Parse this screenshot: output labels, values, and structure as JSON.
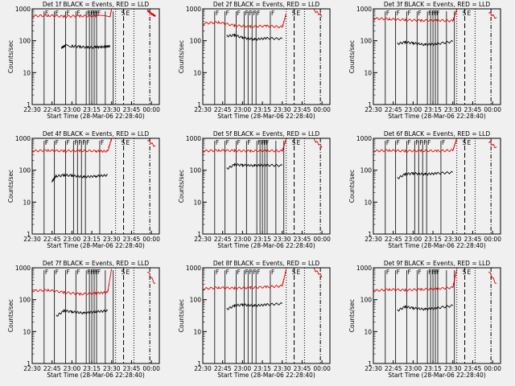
{
  "chart_data": [
    {
      "type": "line",
      "title": "Det 1f BLACK = Events, RED = LLD",
      "xlabel": "Start Time (28-Mar-06 22:28:40)",
      "ylabel": "Counts/sec",
      "ylim": [
        1,
        1000
      ],
      "yscale": "log",
      "yticks": [
        "1",
        "10",
        "100",
        "1000"
      ],
      "xticks": [
        "22:30",
        "22:45",
        "23:00",
        "23:15",
        "23:30",
        "23:45",
        "00:00"
      ],
      "series": [
        {
          "color": "#000000",
          "values": [
            [
              22.87,
              60
            ],
            [
              22.92,
              72
            ],
            [
              23.0,
              68
            ],
            [
              23.1,
              65
            ],
            [
              23.2,
              62
            ],
            [
              23.3,
              63
            ],
            [
              23.42,
              65
            ],
            [
              23.48,
              68
            ]
          ]
        },
        {
          "color": "#e00000",
          "values": [
            [
              22.5,
              600
            ],
            [
              22.7,
              620
            ],
            [
              22.9,
              580
            ],
            [
              23.1,
              600
            ],
            [
              23.3,
              590
            ],
            [
              23.48,
              560
            ],
            [
              23.5,
              990
            ]
          ]
        },
        {
          "color": "#e00000",
          "values": [
            [
              23.95,
              900
            ],
            [
              24.0,
              700
            ],
            [
              24.05,
              600
            ]
          ]
        }
      ],
      "labels": [
        "F",
        "F",
        "F",
        "F",
        "F",
        "F",
        "F",
        "F",
        "F",
        "S",
        "E"
      ]
    },
    {
      "type": "line",
      "title": "Det 2f BLACK = Events, RED = LLD",
      "xlabel": "Start Time (28-Mar-06 22:28:40)",
      "ylabel": "Counts/sec",
      "ylim": [
        1,
        1000
      ],
      "yscale": "log",
      "yticks": [
        "1",
        "10",
        "100",
        "1000"
      ],
      "xticks": [
        "22:30",
        "22:45",
        "23:00",
        "23:15",
        "23:30",
        "23:45",
        "00:00"
      ],
      "series": [
        {
          "color": "#000000",
          "values": [
            [
              22.8,
              140
            ],
            [
              22.9,
              150
            ],
            [
              23.0,
              125
            ],
            [
              23.15,
              110
            ],
            [
              23.3,
              120
            ],
            [
              23.5,
              115
            ]
          ]
        },
        {
          "color": "#e00000",
          "values": [
            [
              22.5,
              350
            ],
            [
              22.7,
              380
            ],
            [
              22.9,
              300
            ],
            [
              23.1,
              280
            ],
            [
              23.3,
              290
            ],
            [
              23.5,
              270
            ],
            [
              23.55,
              700
            ]
          ]
        },
        {
          "color": "#e00000",
          "values": [
            [
              23.9,
              900
            ],
            [
              24.0,
              600
            ]
          ]
        }
      ],
      "labels": [
        "F",
        "F",
        "F",
        "F",
        "F",
        "F",
        "F",
        "F",
        "S",
        "E"
      ]
    },
    {
      "type": "line",
      "title": "Det 3f BLACK = Events, RED = LLD",
      "xlabel": "Start Time (28-Mar-06 22:28:40)",
      "ylabel": "Counts/sec",
      "ylim": [
        1,
        1000
      ],
      "yscale": "log",
      "yticks": [
        "1",
        "10",
        "100",
        "1000"
      ],
      "xticks": [
        "22:30",
        "22:45",
        "23:00",
        "23:15",
        "23:30",
        "23:45",
        "00:00"
      ],
      "series": [
        {
          "color": "#000000",
          "values": [
            [
              22.8,
              80
            ],
            [
              22.9,
              90
            ],
            [
              23.0,
              85
            ],
            [
              23.15,
              75
            ],
            [
              23.3,
              80
            ],
            [
              23.5,
              95
            ]
          ]
        },
        {
          "color": "#e00000",
          "values": [
            [
              22.5,
              500
            ],
            [
              22.7,
              480
            ],
            [
              22.9,
              450
            ],
            [
              23.1,
              430
            ],
            [
              23.3,
              440
            ],
            [
              23.5,
              420
            ],
            [
              23.55,
              950
            ]
          ]
        },
        {
          "color": "#e00000",
          "values": [
            [
              23.95,
              800
            ],
            [
              24.05,
              500
            ]
          ]
        }
      ],
      "labels": [
        "F",
        "F",
        "F",
        "F",
        "F",
        "F",
        "F",
        "F",
        "S",
        "E"
      ]
    },
    {
      "type": "line",
      "title": "Det 4f BLACK = Events, RED = LLD",
      "xlabel": "Start Time (28-Mar-06 22:28:40)",
      "ylabel": "Counts/sec",
      "ylim": [
        1,
        1000
      ],
      "yscale": "log",
      "yticks": [
        "1",
        "10",
        "100",
        "1000"
      ],
      "xticks": [
        "22:30",
        "22:45",
        "23:00",
        "23:15",
        "23:30",
        "23:45",
        "00:00"
      ],
      "series": [
        {
          "color": "#000000",
          "values": [
            [
              22.75,
              45
            ],
            [
              22.8,
              65
            ],
            [
              22.9,
              70
            ],
            [
              23.0,
              68
            ],
            [
              23.15,
              62
            ],
            [
              23.3,
              65
            ],
            [
              23.45,
              70
            ]
          ]
        },
        {
          "color": "#e00000",
          "values": [
            [
              22.5,
              400
            ],
            [
              22.7,
              420
            ],
            [
              22.9,
              400
            ],
            [
              23.1,
              410
            ],
            [
              23.3,
              400
            ],
            [
              23.45,
              390
            ],
            [
              23.5,
              980
            ]
          ]
        },
        {
          "color": "#e00000",
          "values": [
            [
              23.95,
              900
            ],
            [
              24.05,
              550
            ]
          ]
        }
      ],
      "labels": [
        "F",
        "F",
        "F",
        "F",
        "F",
        "F",
        "F",
        "F",
        "F",
        "S",
        "E"
      ]
    },
    {
      "type": "line",
      "title": "Det 5f BLACK = Events, RED = LLD",
      "xlabel": "Start Time (28-Mar-06 22:28:40)",
      "ylabel": "Counts/sec",
      "ylim": [
        1,
        1000
      ],
      "yscale": "log",
      "yticks": [
        "1",
        "10",
        "100",
        "1000"
      ],
      "xticks": [
        "22:30",
        "22:45",
        "23:00",
        "23:15",
        "23:30",
        "23:45",
        "00:00"
      ],
      "series": [
        {
          "color": "#000000",
          "values": [
            [
              22.8,
              110
            ],
            [
              22.9,
              150
            ],
            [
              23.0,
              145
            ],
            [
              23.15,
              140
            ],
            [
              23.3,
              145
            ],
            [
              23.5,
              140
            ]
          ]
        },
        {
          "color": "#e00000",
          "values": [
            [
              22.5,
              400
            ],
            [
              22.7,
              420
            ],
            [
              22.9,
              410
            ],
            [
              23.1,
              400
            ],
            [
              23.3,
              410
            ],
            [
              23.5,
              400
            ],
            [
              23.55,
              950
            ]
          ]
        },
        {
          "color": "#e00000",
          "values": [
            [
              23.9,
              900
            ],
            [
              24.0,
              550
            ]
          ]
        }
      ],
      "labels": [
        "F",
        "F",
        "F",
        "F",
        "F",
        "F",
        "F",
        "F",
        "S",
        "E"
      ]
    },
    {
      "type": "line",
      "title": "Det 6f BLACK = Events, RED = LLD",
      "xlabel": "Start Time (28-Mar-06 22:28:40)",
      "ylabel": "Counts/sec",
      "ylim": [
        1,
        1000
      ],
      "yscale": "log",
      "yticks": [
        "1",
        "10",
        "100",
        "1000"
      ],
      "xticks": [
        "22:30",
        "22:45",
        "23:00",
        "23:15",
        "23:30",
        "23:45",
        "00:00"
      ],
      "series": [
        {
          "color": "#000000",
          "values": [
            [
              22.8,
              55
            ],
            [
              22.9,
              75
            ],
            [
              23.0,
              80
            ],
            [
              23.15,
              75
            ],
            [
              23.3,
              80
            ],
            [
              23.5,
              85
            ]
          ]
        },
        {
          "color": "#e00000",
          "values": [
            [
              22.5,
              400
            ],
            [
              22.7,
              420
            ],
            [
              22.9,
              400
            ],
            [
              23.1,
              410
            ],
            [
              23.3,
              400
            ],
            [
              23.5,
              420
            ],
            [
              23.55,
              980
            ]
          ]
        },
        {
          "color": "#e00000",
          "values": [
            [
              23.95,
              800
            ],
            [
              24.05,
              500
            ]
          ]
        }
      ],
      "labels": [
        "F",
        "F",
        "F",
        "F",
        "F",
        "F",
        "F",
        "F",
        "S",
        "E"
      ]
    },
    {
      "type": "line",
      "title": "Det 7f BLACK = Events, RED = LLD",
      "xlabel": "Start Time (28-Mar-06 22:28:40)",
      "ylabel": "Counts/sec",
      "ylim": [
        1,
        1000
      ],
      "yscale": "log",
      "yticks": [
        "1",
        "10",
        "100",
        "1000"
      ],
      "xticks": [
        "22:30",
        "22:45",
        "23:00",
        "23:15",
        "23:30",
        "23:45",
        "00:00"
      ],
      "series": [
        {
          "color": "#000000",
          "values": [
            [
              22.8,
              30
            ],
            [
              22.9,
              45
            ],
            [
              23.0,
              42
            ],
            [
              23.15,
              38
            ],
            [
              23.3,
              42
            ],
            [
              23.45,
              45
            ]
          ]
        },
        {
          "color": "#e00000",
          "values": [
            [
              22.5,
              190
            ],
            [
              22.7,
              200
            ],
            [
              22.9,
              170
            ],
            [
              23.1,
              150
            ],
            [
              23.3,
              160
            ],
            [
              23.45,
              170
            ],
            [
              23.5,
              950
            ]
          ]
        },
        {
          "color": "#e00000",
          "values": [
            [
              23.95,
              800
            ],
            [
              24.05,
              300
            ]
          ]
        }
      ],
      "labels": [
        "F",
        "F",
        "F",
        "F",
        "F",
        "F",
        "F",
        "F",
        "F",
        "S",
        "E"
      ]
    },
    {
      "type": "line",
      "title": "Det 8f BLACK = Events, RED = LLD",
      "xlabel": "Start Time (28-Mar-06 22:28:40)",
      "ylabel": "Counts/sec",
      "ylim": [
        1,
        1000
      ],
      "yscale": "log",
      "yticks": [
        "1",
        "10",
        "100",
        "1000"
      ],
      "xticks": [
        "22:30",
        "22:45",
        "23:00",
        "23:15",
        "23:30",
        "23:45",
        "00:00"
      ],
      "series": [
        {
          "color": "#000000",
          "values": [
            [
              22.8,
              50
            ],
            [
              22.9,
              65
            ],
            [
              23.0,
              70
            ],
            [
              23.15,
              65
            ],
            [
              23.3,
              70
            ],
            [
              23.5,
              75
            ]
          ]
        },
        {
          "color": "#e00000",
          "values": [
            [
              22.5,
              220
            ],
            [
              22.7,
              240
            ],
            [
              22.9,
              230
            ],
            [
              23.1,
              240
            ],
            [
              23.3,
              250
            ],
            [
              23.5,
              270
            ],
            [
              23.55,
              900
            ]
          ]
        },
        {
          "color": "#e00000",
          "values": [
            [
              23.9,
              900
            ],
            [
              24.0,
              550
            ]
          ]
        }
      ],
      "labels": [
        "F",
        "F",
        "F",
        "F",
        "F",
        "F",
        "F",
        "F",
        "S",
        "E"
      ]
    },
    {
      "type": "line",
      "title": "Det 9f BLACK = Events, RED = LLD",
      "xlabel": "Start Time (28-Mar-06 22:28:40)",
      "ylabel": "Counts/sec",
      "ylim": [
        1,
        1000
      ],
      "yscale": "log",
      "yticks": [
        "1",
        "10",
        "100",
        "1000"
      ],
      "xticks": [
        "22:30",
        "22:45",
        "23:00",
        "23:15",
        "23:30",
        "23:45",
        "00:00"
      ],
      "series": [
        {
          "color": "#000000",
          "values": [
            [
              22.8,
              45
            ],
            [
              22.9,
              60
            ],
            [
              23.0,
              55
            ],
            [
              23.15,
              50
            ],
            [
              23.3,
              55
            ],
            [
              23.5,
              65
            ]
          ]
        },
        {
          "color": "#e00000",
          "values": [
            [
              22.5,
              190
            ],
            [
              22.7,
              210
            ],
            [
              22.9,
              200
            ],
            [
              23.1,
              210
            ],
            [
              23.3,
              220
            ],
            [
              23.5,
              240
            ],
            [
              23.55,
              900
            ]
          ]
        },
        {
          "color": "#e00000",
          "values": [
            [
              23.95,
              800
            ],
            [
              24.05,
              300
            ]
          ]
        }
      ],
      "labels": [
        "F",
        "F",
        "F",
        "F",
        "F",
        "F",
        "F",
        "F",
        "S",
        "E"
      ]
    }
  ],
  "xrange": [
    22.5,
    24.1
  ]
}
